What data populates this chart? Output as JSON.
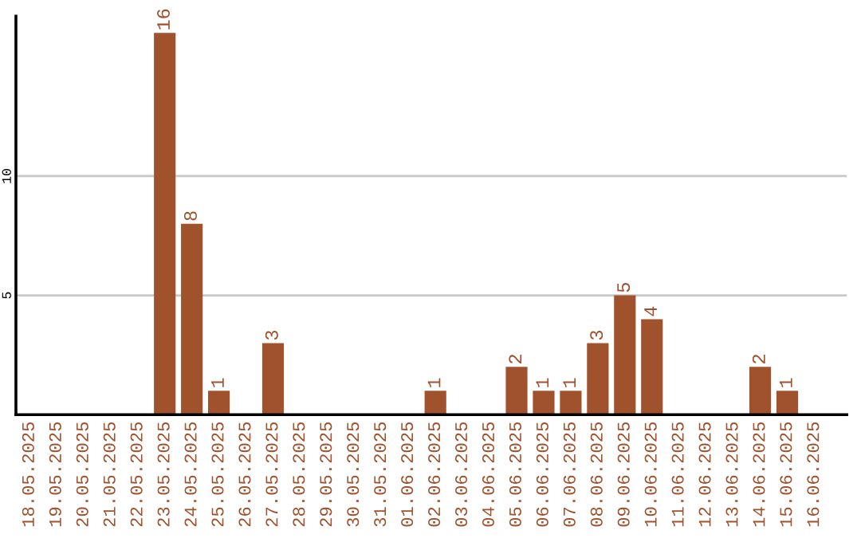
{
  "chart_data": {
    "type": "bar",
    "categories": [
      "18.05.2025",
      "19.05.2025",
      "20.05.2025",
      "21.05.2025",
      "22.05.2025",
      "23.05.2025",
      "24.05.2025",
      "25.05.2025",
      "26.05.2025",
      "27.05.2025",
      "28.05.2025",
      "29.05.2025",
      "30.05.2025",
      "31.05.2025",
      "01.06.2025",
      "02.06.2025",
      "03.06.2025",
      "04.06.2025",
      "05.06.2025",
      "06.06.2025",
      "07.06.2025",
      "08.06.2025",
      "09.06.2025",
      "10.06.2025",
      "11.06.2025",
      "12.06.2025",
      "13.06.2025",
      "14.06.2025",
      "15.06.2025",
      "16.06.2025"
    ],
    "values": [
      0,
      0,
      0,
      0,
      0,
      16,
      8,
      1,
      0,
      3,
      0,
      0,
      0,
      0,
      0,
      1,
      0,
      0,
      2,
      1,
      1,
      3,
      5,
      4,
      0,
      0,
      0,
      2,
      1,
      0
    ],
    "value_labels": [
      null,
      null,
      null,
      null,
      null,
      "16",
      "8",
      "1",
      null,
      "3",
      null,
      null,
      null,
      null,
      null,
      "1",
      null,
      null,
      "2",
      "1",
      "1",
      "3",
      "5",
      "4",
      null,
      null,
      null,
      "2",
      "1",
      null
    ],
    "color": "#a0522d",
    "ylim": [
      0,
      16.7
    ],
    "yticks": [
      5,
      10
    ],
    "grid": "y"
  }
}
